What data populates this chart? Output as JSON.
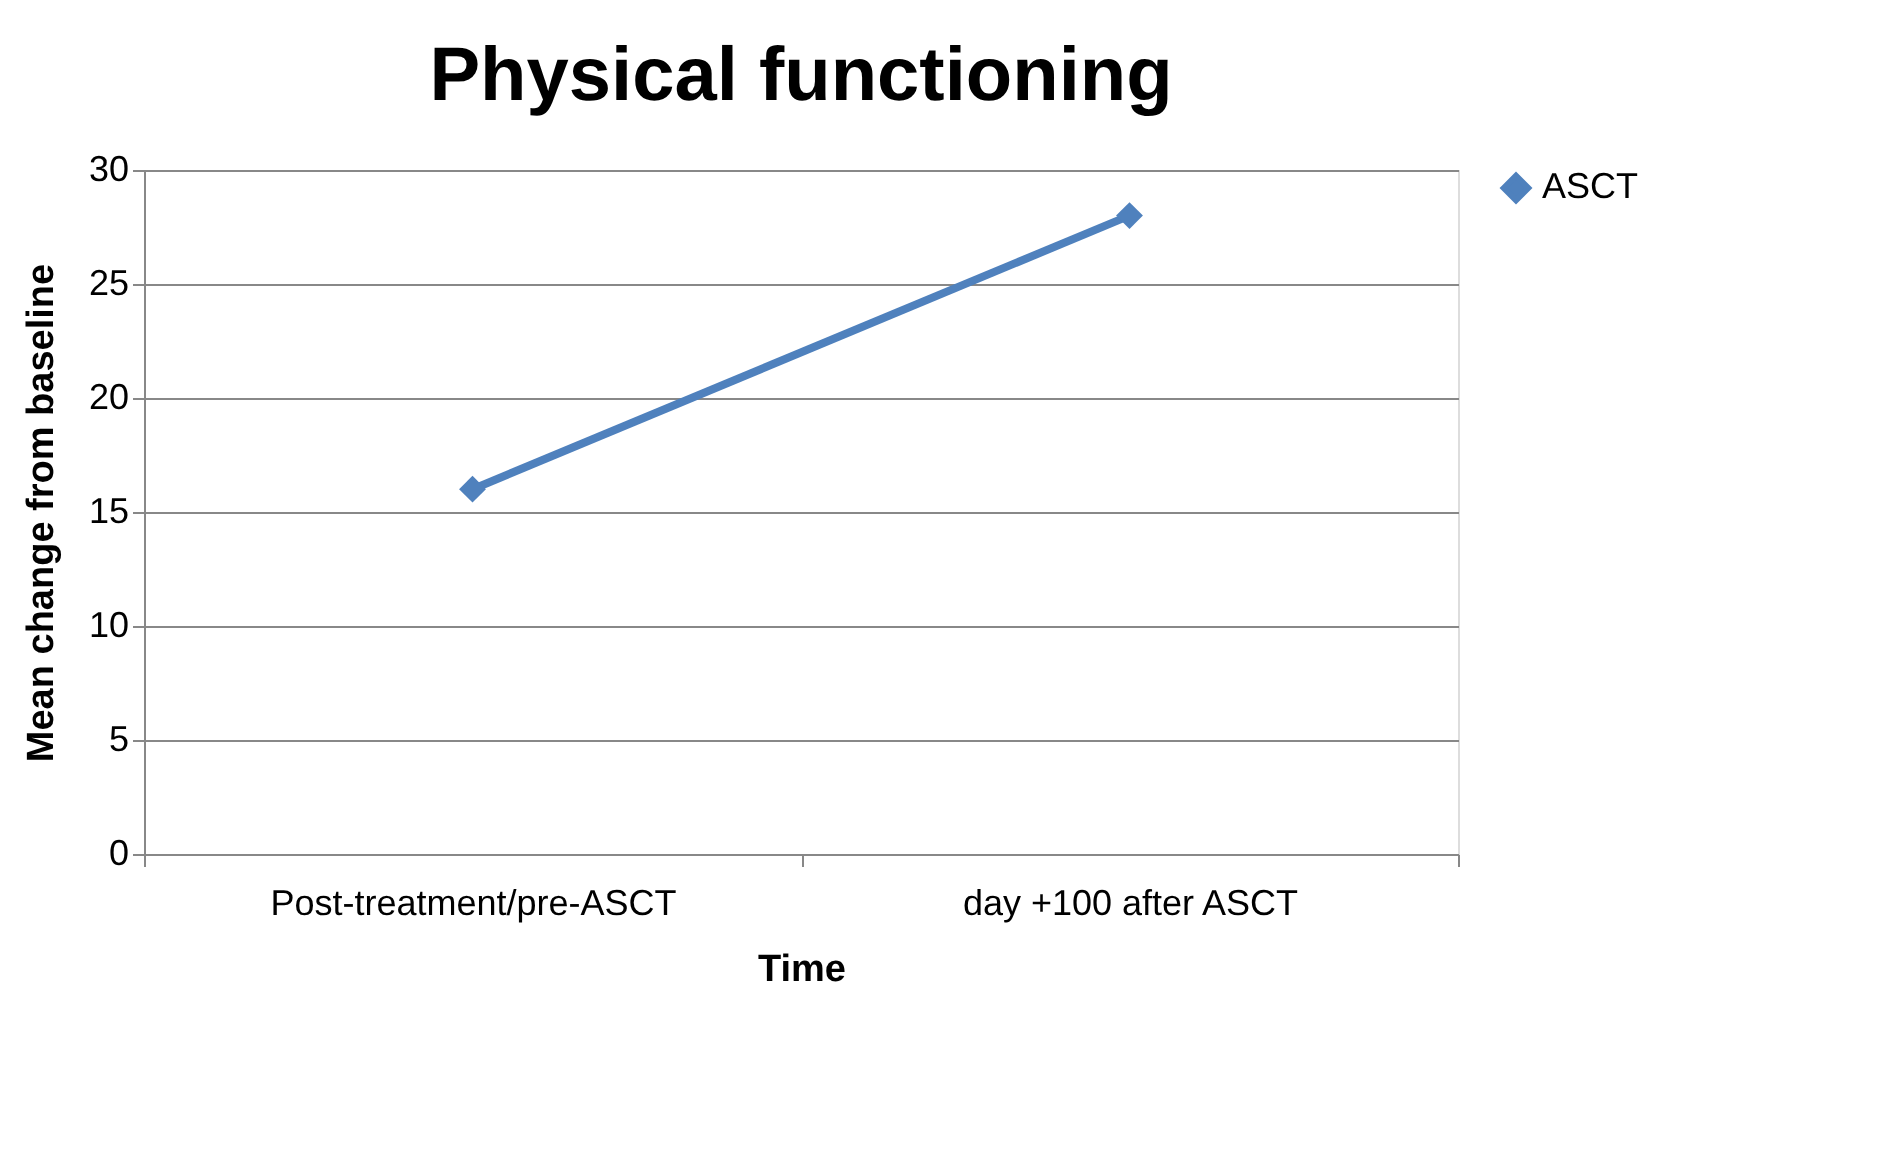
{
  "chart_data": {
    "type": "line",
    "title": "Physical functioning",
    "xlabel": "Time",
    "ylabel": "Mean change from baseline",
    "categories": [
      "Post-treatment/pre-ASCT",
      "day +100 after ASCT"
    ],
    "series": [
      {
        "name": "ASCT",
        "color": "#4f81bd",
        "values": [
          16,
          28
        ]
      }
    ],
    "ylim": [
      0,
      30
    ],
    "yticks": [
      0,
      5,
      10,
      15,
      20,
      25,
      30
    ],
    "grid": "y",
    "legend": "right",
    "marker": "diamond",
    "line_style": "solid"
  }
}
